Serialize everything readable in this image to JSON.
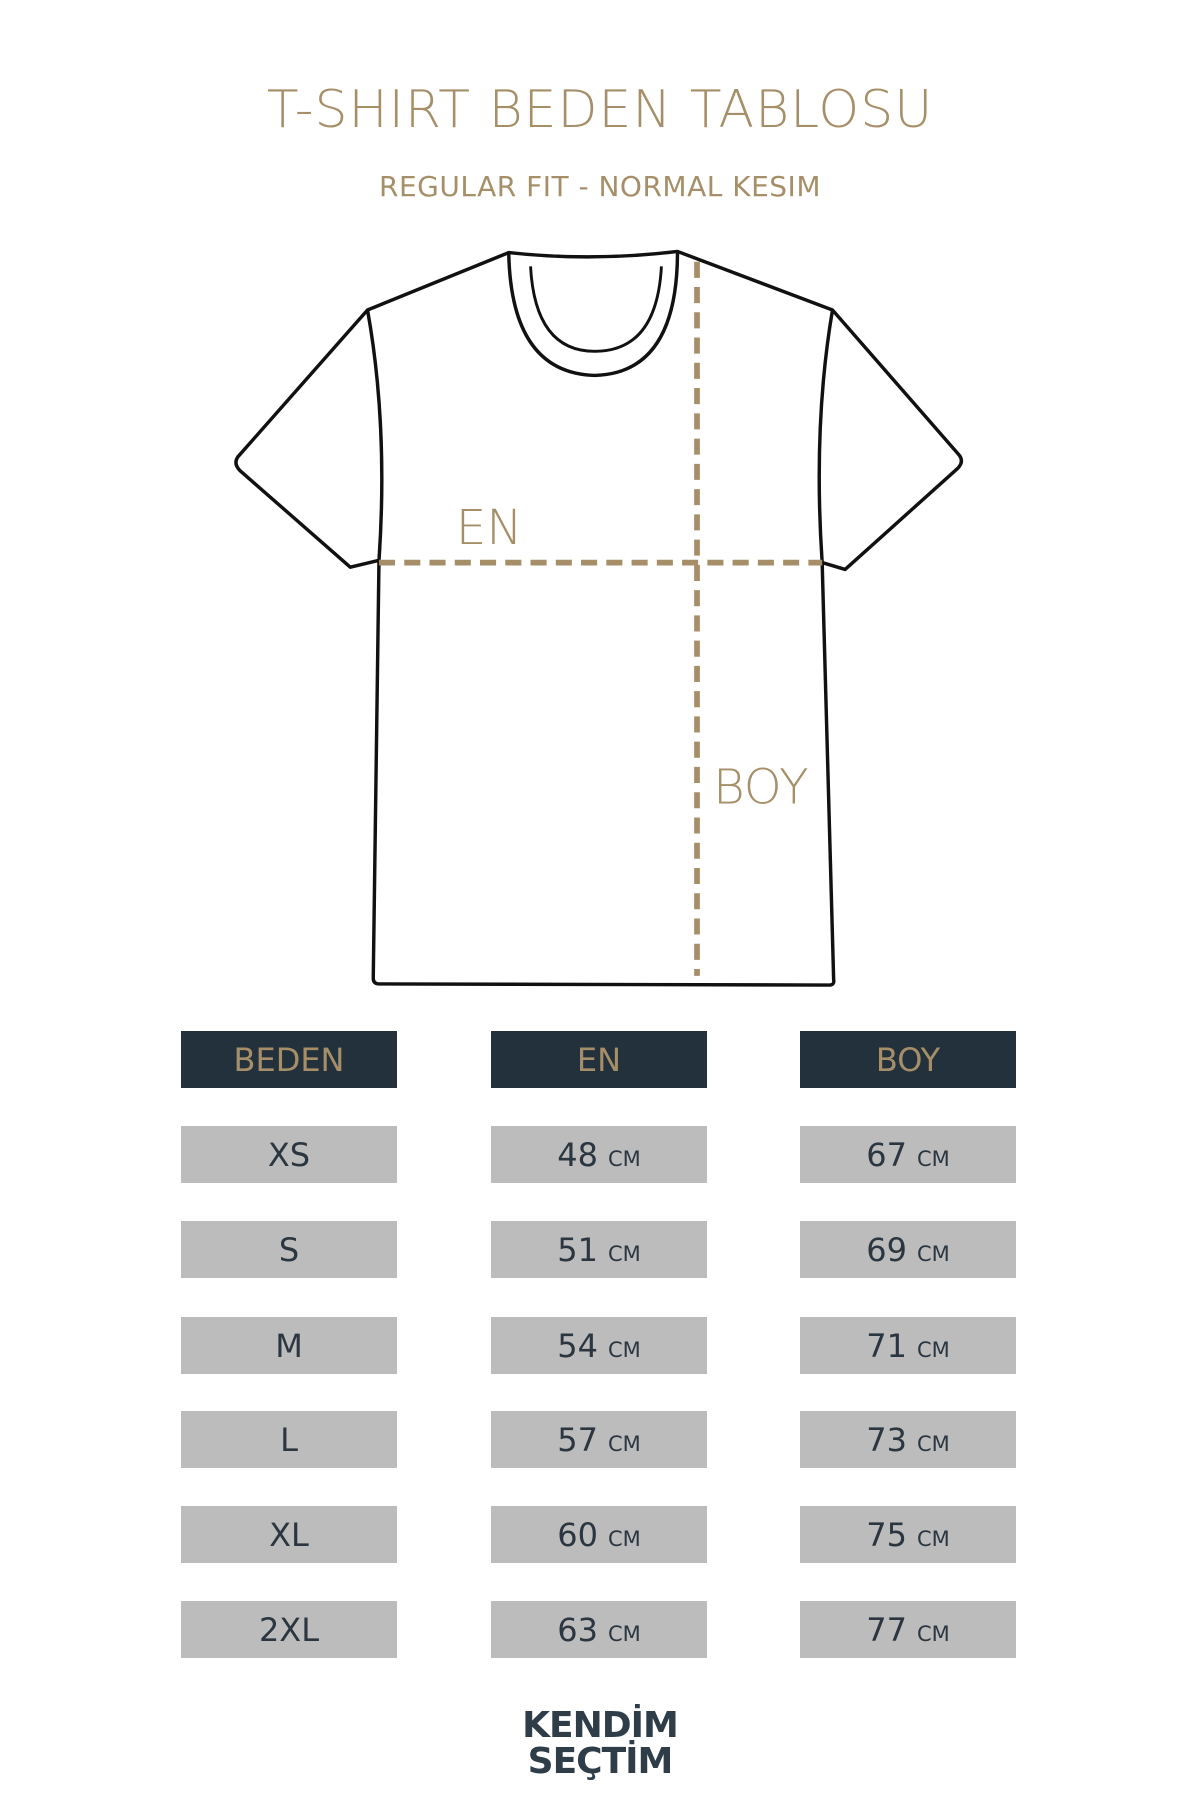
{
  "title": "T-SHIRT BEDEN TABLOSU",
  "subtitle": "REGULAR FIT - NORMAL KESIM",
  "diagram": {
    "width_label": "EN",
    "length_label": "BOY"
  },
  "colors": {
    "accent": "#a68f68",
    "header_bg": "#22313b",
    "cell_bg": "#bcbcbc",
    "text": "#2b3641"
  },
  "table": {
    "headers": [
      "BEDEN",
      "EN",
      "BOY"
    ],
    "unit": "CM",
    "rows": [
      {
        "size": "XS",
        "en": "48",
        "boy": "67"
      },
      {
        "size": "S",
        "en": "51",
        "boy": "69"
      },
      {
        "size": "M",
        "en": "54",
        "boy": "71"
      },
      {
        "size": "L",
        "en": "57",
        "boy": "73"
      },
      {
        "size": "XL",
        "en": "60",
        "boy": "75"
      },
      {
        "size": "2XL",
        "en": "63",
        "boy": "77"
      }
    ]
  },
  "logo": {
    "line1": "KENDİM",
    "line2": "SEÇTİM"
  }
}
